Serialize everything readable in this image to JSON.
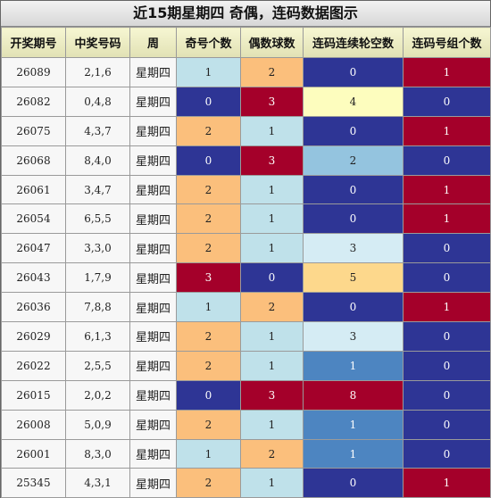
{
  "title": "近15期星期四 奇偶，连码数据图示",
  "headers": [
    "开奖期号",
    "中奖号码",
    "周",
    "奇号个数",
    "偶数球数",
    "连码连续轮空数",
    "连码号组个数"
  ],
  "rows": [
    {
      "issue": "26089",
      "numbers": "2,1,6",
      "week": "星期四",
      "odd": "1",
      "even": "2",
      "gap": "0",
      "groups": "1"
    },
    {
      "issue": "26082",
      "numbers": "0,4,8",
      "week": "星期四",
      "odd": "0",
      "even": "3",
      "gap": "4",
      "groups": "0"
    },
    {
      "issue": "26075",
      "numbers": "4,3,7",
      "week": "星期四",
      "odd": "2",
      "even": "1",
      "gap": "0",
      "groups": "1"
    },
    {
      "issue": "26068",
      "numbers": "8,4,0",
      "week": "星期四",
      "odd": "0",
      "even": "3",
      "gap": "2",
      "groups": "0"
    },
    {
      "issue": "26061",
      "numbers": "3,4,7",
      "week": "星期四",
      "odd": "2",
      "even": "1",
      "gap": "0",
      "groups": "1"
    },
    {
      "issue": "26054",
      "numbers": "6,5,5",
      "week": "星期四",
      "odd": "2",
      "even": "1",
      "gap": "0",
      "groups": "1"
    },
    {
      "issue": "26047",
      "numbers": "3,3,0",
      "week": "星期四",
      "odd": "2",
      "even": "1",
      "gap": "3",
      "groups": "0"
    },
    {
      "issue": "26043",
      "numbers": "1,7,9",
      "week": "星期四",
      "odd": "3",
      "even": "0",
      "gap": "5",
      "groups": "0"
    },
    {
      "issue": "26036",
      "numbers": "7,8,8",
      "week": "星期四",
      "odd": "1",
      "even": "2",
      "gap": "0",
      "groups": "1"
    },
    {
      "issue": "26029",
      "numbers": "6,1,3",
      "week": "星期四",
      "odd": "2",
      "even": "1",
      "gap": "3",
      "groups": "0"
    },
    {
      "issue": "26022",
      "numbers": "2,5,5",
      "week": "星期四",
      "odd": "2",
      "even": "1",
      "gap": "1",
      "groups": "0"
    },
    {
      "issue": "26015",
      "numbers": "2,0,2",
      "week": "星期四",
      "odd": "0",
      "even": "3",
      "gap": "8",
      "groups": "0"
    },
    {
      "issue": "26008",
      "numbers": "5,0,9",
      "week": "星期四",
      "odd": "2",
      "even": "1",
      "gap": "1",
      "groups": "0"
    },
    {
      "issue": "26001",
      "numbers": "8,3,0",
      "week": "星期四",
      "odd": "1",
      "even": "2",
      "gap": "1",
      "groups": "0"
    },
    {
      "issue": "25345",
      "numbers": "4,3,1",
      "week": "星期四",
      "odd": "2",
      "even": "1",
      "gap": "0",
      "groups": "1"
    }
  ],
  "colors": {
    "odd": {
      "0": "#2e3595",
      "1": "#bfe1ea",
      "2": "#fbbf7c",
      "3": "#a4002a"
    },
    "even": {
      "0": "#2e3595",
      "1": "#bfe1ea",
      "2": "#fbbf7c",
      "3": "#a4002a"
    },
    "gap": {
      "0": "#2e3595",
      "1": "#4d85c1",
      "2": "#94c4df",
      "3": "#d5ecf4",
      "4": "#fdfdbe",
      "5": "#fdd88c",
      "8": "#a4002a"
    },
    "groups": {
      "0": "#2e3595",
      "1": "#a4002a"
    }
  }
}
